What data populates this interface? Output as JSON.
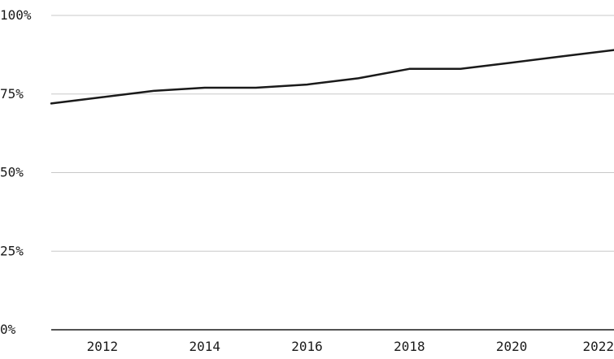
{
  "chart_data": {
    "type": "line",
    "title": "",
    "xlabel": "",
    "ylabel": "",
    "x": [
      2011,
      2012,
      2013,
      2014,
      2015,
      2016,
      2017,
      2018,
      2019,
      2020,
      2021,
      2022
    ],
    "series": [
      {
        "values": [
          72,
          74,
          76,
          77,
          77,
          78,
          80,
          83,
          83,
          85,
          87,
          89
        ]
      }
    ],
    "xlim": [
      2011,
      2022
    ],
    "ylim": [
      0,
      100
    ],
    "x_ticks": [
      "2012",
      "2014",
      "2016",
      "2018",
      "2020",
      "2022"
    ],
    "x_tick_values": [
      2012,
      2014,
      2016,
      2018,
      2020,
      2022
    ],
    "y_ticks": [
      "0%",
      "25%",
      "50%",
      "75%",
      "100%"
    ],
    "y_tick_values": [
      0,
      25,
      50,
      75,
      100
    ],
    "grid": true,
    "legend": "none",
    "colors": {
      "line": "#1a1a1a",
      "grid": "#c8c8c8",
      "axis": "#1a1a1a",
      "text": "#1a1a1a"
    }
  }
}
